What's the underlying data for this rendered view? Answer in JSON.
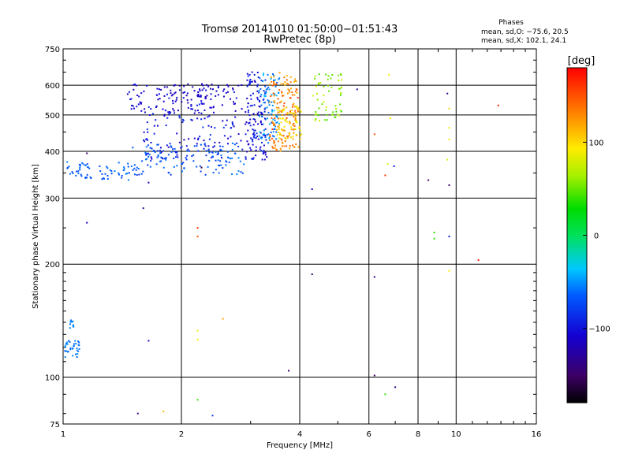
{
  "chart_data": {
    "type": "scatter",
    "title": "Tromsø 20141010 01:50:00−01:51:43",
    "subtitle": "RwPretec (8p)",
    "xlabel": "Frequency [MHz]",
    "ylabel": "Stationary phase Virtual Height [km]",
    "x_scale": "log",
    "y_scale": "log",
    "xlim": [
      1,
      16
    ],
    "ylim": [
      75,
      750
    ],
    "x_ticks": [
      1,
      2,
      4,
      6,
      8,
      10,
      16
    ],
    "y_ticks": [
      75,
      100,
      200,
      300,
      400,
      500,
      600,
      750
    ],
    "grid": true,
    "annotation": {
      "header": "Phases",
      "line1": "mean, sd,O: −75.6, 20.5",
      "line2": "mean, sd,X: 102.1, 24.1"
    },
    "colorbar": {
      "label": "[deg]",
      "min": -180,
      "max": 180,
      "ticks": [
        100,
        0,
        -100
      ],
      "tick_labels": [
        "100",
        "0",
        "−100"
      ]
    },
    "clusters": [
      {
        "f": [
          1.45,
          2.85
        ],
        "h": [
          505,
          605
        ],
        "phase": [
          -125,
          -95
        ],
        "n": 140
      },
      {
        "f": [
          1.6,
          3.1
        ],
        "h": [
          380,
          540
        ],
        "phase": [
          -120,
          -80
        ],
        "n": 130
      },
      {
        "f": [
          1.5,
          2.9
        ],
        "h": [
          345,
          420
        ],
        "phase": [
          -85,
          -55
        ],
        "n": 130
      },
      {
        "f": [
          1.02,
          1.6
        ],
        "h": [
          335,
          375
        ],
        "phase": [
          -75,
          -55
        ],
        "n": 70
      },
      {
        "f": [
          2.9,
          3.3
        ],
        "h": [
          380,
          650
        ],
        "phase": [
          -120,
          -80
        ],
        "n": 120
      },
      {
        "f": [
          3.15,
          3.55
        ],
        "h": [
          420,
          650
        ],
        "phase": [
          -70,
          -35
        ],
        "n": 90
      },
      {
        "f": [
          3.35,
          4.0
        ],
        "h": [
          400,
          650
        ],
        "phase": [
          110,
          155
        ],
        "n": 150
      },
      {
        "f": [
          3.5,
          4.05
        ],
        "h": [
          430,
          530
        ],
        "phase": [
          85,
          110
        ],
        "n": 60
      },
      {
        "f": [
          4.3,
          5.2
        ],
        "h": [
          480,
          650
        ],
        "phase": [
          40,
          80
        ],
        "n": 60
      },
      {
        "f": [
          1.01,
          1.1
        ],
        "h": [
          113,
          125
        ],
        "phase": [
          -65,
          -50
        ],
        "n": 35
      },
      {
        "f": [
          1.04,
          1.07
        ],
        "h": [
          135,
          143
        ],
        "phase": [
          -60,
          -50
        ],
        "n": 10
      }
    ],
    "points": [
      {
        "f": 1.15,
        "h": 395,
        "phase": -150
      },
      {
        "f": 1.15,
        "h": 258,
        "phase": -110
      },
      {
        "f": 1.6,
        "h": 282,
        "phase": -130
      },
      {
        "f": 1.65,
        "h": 330,
        "phase": -120
      },
      {
        "f": 1.65,
        "h": 125,
        "phase": -110
      },
      {
        "f": 1.55,
        "h": 80,
        "phase": -140
      },
      {
        "f": 1.8,
        "h": 81,
        "phase": 110
      },
      {
        "f": 2.2,
        "h": 250,
        "phase": 160
      },
      {
        "f": 2.2,
        "h": 237,
        "phase": 150
      },
      {
        "f": 2.2,
        "h": 133,
        "phase": 90
      },
      {
        "f": 2.2,
        "h": 126,
        "phase": 90
      },
      {
        "f": 2.55,
        "h": 143,
        "phase": 120
      },
      {
        "f": 2.2,
        "h": 87,
        "phase": 40
      },
      {
        "f": 2.4,
        "h": 79,
        "phase": -80
      },
      {
        "f": 2.25,
        "h": 362,
        "phase": -160
      },
      {
        "f": 3.75,
        "h": 104,
        "phase": -150
      },
      {
        "f": 4.3,
        "h": 188,
        "phase": -140
      },
      {
        "f": 4.3,
        "h": 317,
        "phase": -100
      },
      {
        "f": 5.6,
        "h": 585,
        "phase": -130
      },
      {
        "f": 6.2,
        "h": 444,
        "phase": 150
      },
      {
        "f": 6.2,
        "h": 185,
        "phase": -140
      },
      {
        "f": 6.2,
        "h": 101,
        "phase": -150
      },
      {
        "f": 6.6,
        "h": 345,
        "phase": 160
      },
      {
        "f": 6.6,
        "h": 90,
        "phase": 40
      },
      {
        "f": 6.7,
        "h": 370,
        "phase": 80
      },
      {
        "f": 6.75,
        "h": 640,
        "phase": 90
      },
      {
        "f": 6.8,
        "h": 490,
        "phase": 90
      },
      {
        "f": 6.95,
        "h": 365,
        "phase": -100
      },
      {
        "f": 7.0,
        "h": 94,
        "phase": -140
      },
      {
        "f": 8.5,
        "h": 335,
        "phase": -150
      },
      {
        "f": 8.8,
        "h": 243,
        "phase": 40
      },
      {
        "f": 8.8,
        "h": 234,
        "phase": 40
      },
      {
        "f": 9.5,
        "h": 570,
        "phase": -140
      },
      {
        "f": 9.6,
        "h": 520,
        "phase": 100
      },
      {
        "f": 9.6,
        "h": 462,
        "phase": 90
      },
      {
        "f": 9.6,
        "h": 430,
        "phase": 95
      },
      {
        "f": 9.5,
        "h": 380,
        "phase": 80
      },
      {
        "f": 9.6,
        "h": 325,
        "phase": -150
      },
      {
        "f": 9.6,
        "h": 237,
        "phase": -100
      },
      {
        "f": 9.6,
        "h": 192,
        "phase": 90
      },
      {
        "f": 11.4,
        "h": 205,
        "phase": 170
      },
      {
        "f": 12.8,
        "h": 530,
        "phase": 170
      }
    ]
  }
}
